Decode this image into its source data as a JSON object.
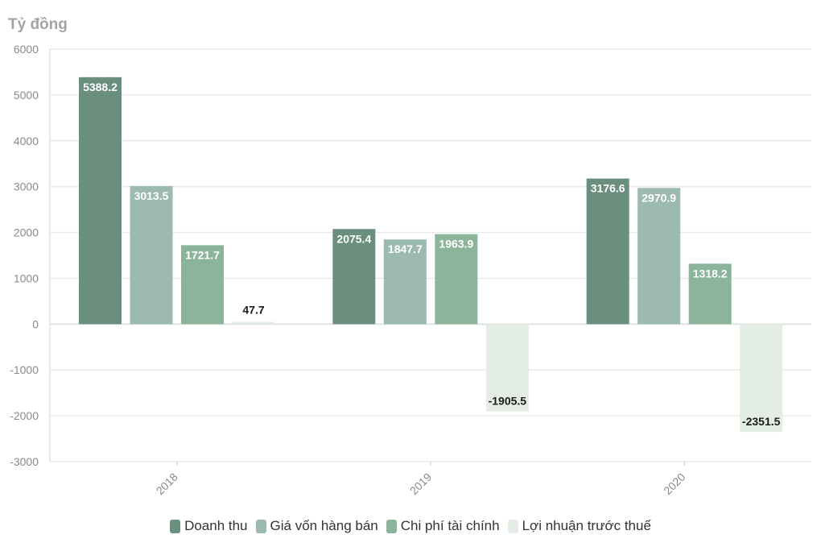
{
  "chart_data": {
    "type": "bar",
    "ylabel": "Tỷ đồng",
    "xlabel": "",
    "categories": [
      "2018",
      "2019",
      "2020"
    ],
    "series": [
      {
        "name": "Doanh thu",
        "color": "#6a8f7f",
        "values": [
          5388.2,
          2075.4,
          3176.6
        ]
      },
      {
        "name": "Giá vốn hàng bán",
        "color": "#9dbab0",
        "values": [
          3013.5,
          1847.7,
          2970.9
        ]
      },
      {
        "name": "Chi phí tài chính",
        "color": "#8bb49a",
        "values": [
          1721.7,
          1963.9,
          1318.2
        ]
      },
      {
        "name": "Lợi nhuận trước thuế",
        "color": "#e3ede3",
        "values": [
          47.7,
          -1905.5,
          -2351.5
        ]
      }
    ],
    "value_labels": [
      [
        "5388.2",
        "2075.4",
        "3176.6"
      ],
      [
        "3013.5",
        "1847.7",
        "2970.9"
      ],
      [
        "1721.7",
        "1963.9",
        "1318.2"
      ],
      [
        "47.7",
        "-1905.5",
        "-2351.5"
      ]
    ],
    "ylim": [
      -3000,
      6000
    ],
    "yticks": [
      6000,
      5000,
      4000,
      3000,
      2000,
      1000,
      0,
      -1000,
      -2000,
      -3000
    ],
    "grid": true,
    "legend_position": "bottom"
  }
}
